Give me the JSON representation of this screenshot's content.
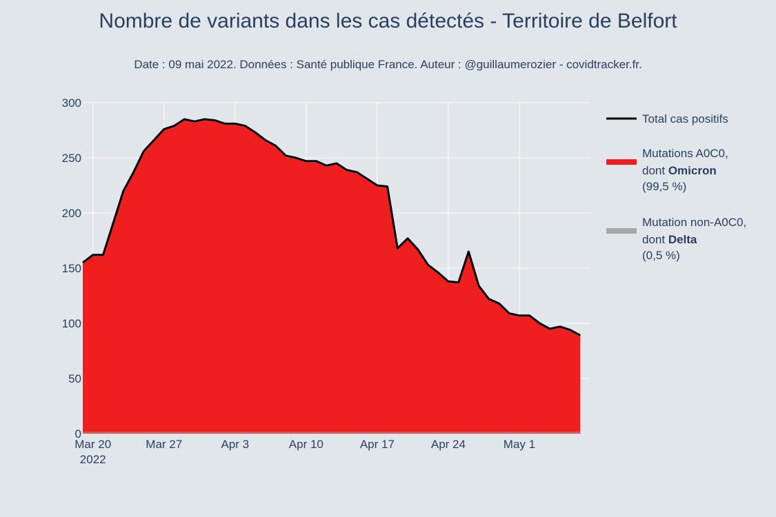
{
  "title": "Nombre de variants dans les cas détectés - Territoire de Belfort",
  "subtitle": "Date : 09 mai 2022. Données : Santé publique France. Auteur : @guillaumerozier - covidtracker.fr.",
  "colors": {
    "background": "#e1e6eb",
    "total": "#000000",
    "omicron": "#ef1f1f",
    "delta": "#a6a6a6",
    "grid": "#ffffff",
    "text": "#2a3f5f"
  },
  "chart_data": {
    "type": "area",
    "x_start": "2022-03-19",
    "x_end": "2022-05-08",
    "xlim": [
      "2022-03-19",
      "2022-05-08"
    ],
    "ylim": [
      0,
      300
    ],
    "y_ticks": [
      "0",
      "50",
      "100",
      "150",
      "200",
      "250",
      "300"
    ],
    "x_ticks": [
      {
        "line1": "Mar 20",
        "line2": "2022"
      },
      {
        "line1": "Mar 27",
        "line2": ""
      },
      {
        "line1": "Apr 3",
        "line2": ""
      },
      {
        "line1": "Apr 10",
        "line2": ""
      },
      {
        "line1": "Apr 17",
        "line2": ""
      },
      {
        "line1": "Apr 24",
        "line2": ""
      },
      {
        "line1": "May 1",
        "line2": ""
      }
    ],
    "grid": true,
    "legend_position": "right",
    "series": [
      {
        "name": "Total cas positifs",
        "kind": "line",
        "values": [
          155,
          162,
          162,
          191,
          220,
          237,
          256,
          266,
          276,
          279,
          285,
          283,
          285,
          284,
          281,
          281,
          279,
          273,
          266,
          261,
          252,
          250,
          247,
          247,
          243,
          245,
          239,
          237,
          231,
          225,
          224,
          168,
          177,
          167,
          153,
          146,
          138,
          137,
          165,
          134,
          122,
          118,
          109,
          107,
          107,
          100,
          95,
          97,
          94,
          89
        ]
      },
      {
        "name": "Mutations A0C0, dont Omicron (99,5 %)",
        "kind": "area",
        "values": [
          154,
          161,
          161,
          190,
          219,
          236,
          255,
          265,
          275,
          278,
          284,
          282,
          284,
          283,
          280,
          280,
          278,
          272,
          265,
          260,
          251,
          249,
          246,
          246,
          242,
          244,
          238,
          236,
          230,
          224,
          223,
          167,
          176,
          166,
          152,
          145,
          137,
          136,
          164,
          133,
          121,
          117,
          108,
          106,
          106,
          99,
          94,
          96,
          93,
          88
        ]
      },
      {
        "name": "Mutation non-A0C0, dont Delta (0,5 %)",
        "kind": "area",
        "values": [
          1,
          1,
          1,
          1,
          1,
          1,
          1,
          1,
          1,
          1,
          1,
          1,
          1,
          1,
          1,
          1,
          1,
          1,
          1,
          1,
          1,
          1,
          1,
          1,
          1,
          1,
          1,
          1,
          1,
          1,
          1,
          1,
          1,
          1,
          1,
          1,
          1,
          1,
          1,
          1,
          1,
          1,
          1,
          1,
          1,
          1,
          1,
          1,
          1,
          1
        ]
      }
    ]
  },
  "legend": [
    {
      "label_line1": "Total cas positifs",
      "label_line2_pre": "",
      "label_line2_bold": "",
      "label_line3": "",
      "color": "#000000"
    },
    {
      "label_line1": "Mutations A0C0,",
      "label_line2_pre": "dont ",
      "label_line2_bold": "Omicron",
      "label_line3": " (99,5 %)",
      "color": "#ef1f1f"
    },
    {
      "label_line1": "Mutation non-A0C0,",
      "label_line2_pre": "dont ",
      "label_line2_bold": "Delta",
      "label_line3": " (0,5 %)",
      "color": "#a6a6a6"
    }
  ]
}
